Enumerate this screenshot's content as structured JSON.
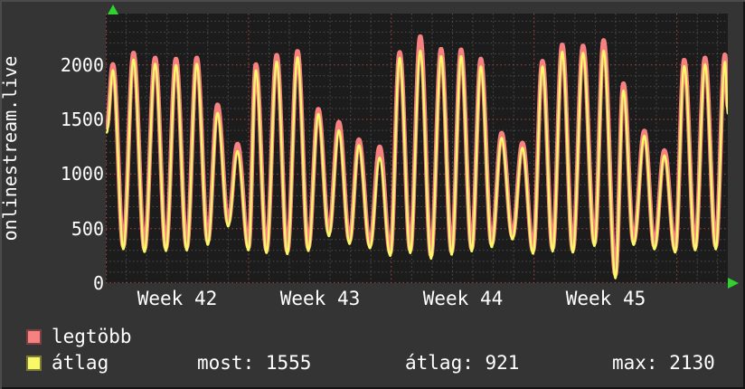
{
  "colors": {
    "background": "#343434",
    "plot_background": "#1c1c1c",
    "grid_minor": "#4e4e4e",
    "grid_major": "#aa4646",
    "text": "#ffffff",
    "axis_arrow_green": "#2fd32f",
    "series_legtobb": "#f78181",
    "series_atlag": "#f8f868"
  },
  "chart_data": {
    "type": "line",
    "title": "onlinestream.live",
    "xlabel": "",
    "ylabel": "",
    "grid": true,
    "legend_position": "bottom",
    "ylim": [
      0,
      2470
    ],
    "xlim_days": [
      0,
      30.5
    ],
    "ytick_values": [
      0,
      500,
      1000,
      1500,
      2000
    ],
    "y_tick_labels": [
      "0",
      "500",
      "1000",
      "1500",
      "2000"
    ],
    "minor_y_step": 100,
    "minor_x_step_days": 1,
    "week_tick_days": [
      7,
      14,
      21,
      28
    ],
    "week_label_centers_days": [
      3.5,
      10.5,
      17.5,
      24.5
    ],
    "x_tick_labels": [
      "Week 42",
      "Week 43",
      "Week 44",
      "Week 45"
    ],
    "stats": {
      "most": 1555,
      "atlag": 921,
      "max": 2130
    },
    "series_names": [
      "legtöbb",
      "átlag"
    ],
    "control_points_format": [
      "t_days",
      "atlag_value",
      "legtobb_value"
    ],
    "control_points": [
      [
        0.05,
        1380,
        1430
      ],
      [
        0.35,
        1950,
        2005
      ],
      [
        0.86,
        310,
        340
      ],
      [
        1.36,
        2050,
        2110
      ],
      [
        1.9,
        285,
        315
      ],
      [
        2.42,
        2010,
        2065
      ],
      [
        2.95,
        295,
        325
      ],
      [
        3.44,
        2000,
        2055
      ],
      [
        3.97,
        300,
        330
      ],
      [
        4.46,
        2010,
        2065
      ],
      [
        5.0,
        350,
        385
      ],
      [
        5.48,
        1560,
        1635
      ],
      [
        6.0,
        520,
        555
      ],
      [
        6.46,
        1210,
        1275
      ],
      [
        7.0,
        300,
        330
      ],
      [
        7.36,
        1950,
        2005
      ],
      [
        7.88,
        275,
        305
      ],
      [
        8.38,
        2030,
        2090
      ],
      [
        8.9,
        265,
        295
      ],
      [
        9.4,
        2070,
        2125
      ],
      [
        9.93,
        295,
        325
      ],
      [
        10.42,
        1550,
        1595
      ],
      [
        10.94,
        430,
        465
      ],
      [
        11.43,
        1400,
        1475
      ],
      [
        11.95,
        360,
        390
      ],
      [
        12.41,
        1265,
        1315
      ],
      [
        12.95,
        320,
        350
      ],
      [
        13.43,
        1150,
        1250
      ],
      [
        13.95,
        250,
        280
      ],
      [
        14.41,
        2065,
        2115
      ],
      [
        14.93,
        275,
        305
      ],
      [
        15.42,
        2130,
        2260
      ],
      [
        15.95,
        225,
        255
      ],
      [
        16.44,
        2080,
        2145
      ],
      [
        16.96,
        260,
        290
      ],
      [
        17.42,
        2080,
        2140
      ],
      [
        17.94,
        290,
        320
      ],
      [
        18.39,
        1985,
        2055
      ],
      [
        18.92,
        330,
        360
      ],
      [
        19.41,
        1330,
        1375
      ],
      [
        19.94,
        400,
        430
      ],
      [
        20.43,
        1240,
        1285
      ],
      [
        20.95,
        270,
        300
      ],
      [
        21.41,
        1985,
        2035
      ],
      [
        21.91,
        290,
        320
      ],
      [
        22.38,
        2120,
        2185
      ],
      [
        22.9,
        280,
        310
      ],
      [
        23.4,
        2110,
        2175
      ],
      [
        23.96,
        340,
        370
      ],
      [
        24.41,
        2130,
        2225
      ],
      [
        24.99,
        45,
        80
      ],
      [
        25.38,
        1765,
        1830
      ],
      [
        25.88,
        350,
        380
      ],
      [
        26.41,
        1350,
        1395
      ],
      [
        26.9,
        310,
        340
      ],
      [
        27.39,
        1170,
        1215
      ],
      [
        27.92,
        280,
        310
      ],
      [
        28.36,
        1990,
        2045
      ],
      [
        28.9,
        300,
        330
      ],
      [
        29.38,
        2005,
        2065
      ],
      [
        29.91,
        310,
        340
      ],
      [
        30.36,
        2030,
        2095
      ],
      [
        30.5,
        1555,
        1620
      ]
    ]
  },
  "legend": {
    "items": [
      {
        "label": "legtöbb",
        "color": "#f78181"
      },
      {
        "label": "átlag",
        "color": "#f8f868"
      }
    ],
    "stats": [
      {
        "label": "most:",
        "value": "1555",
        "text": "most: 1555"
      },
      {
        "label": "átlag:",
        "value": "921",
        "text": "átlag: 921"
      },
      {
        "label": "max:",
        "value": "2130",
        "text": "max: 2130"
      }
    ]
  }
}
